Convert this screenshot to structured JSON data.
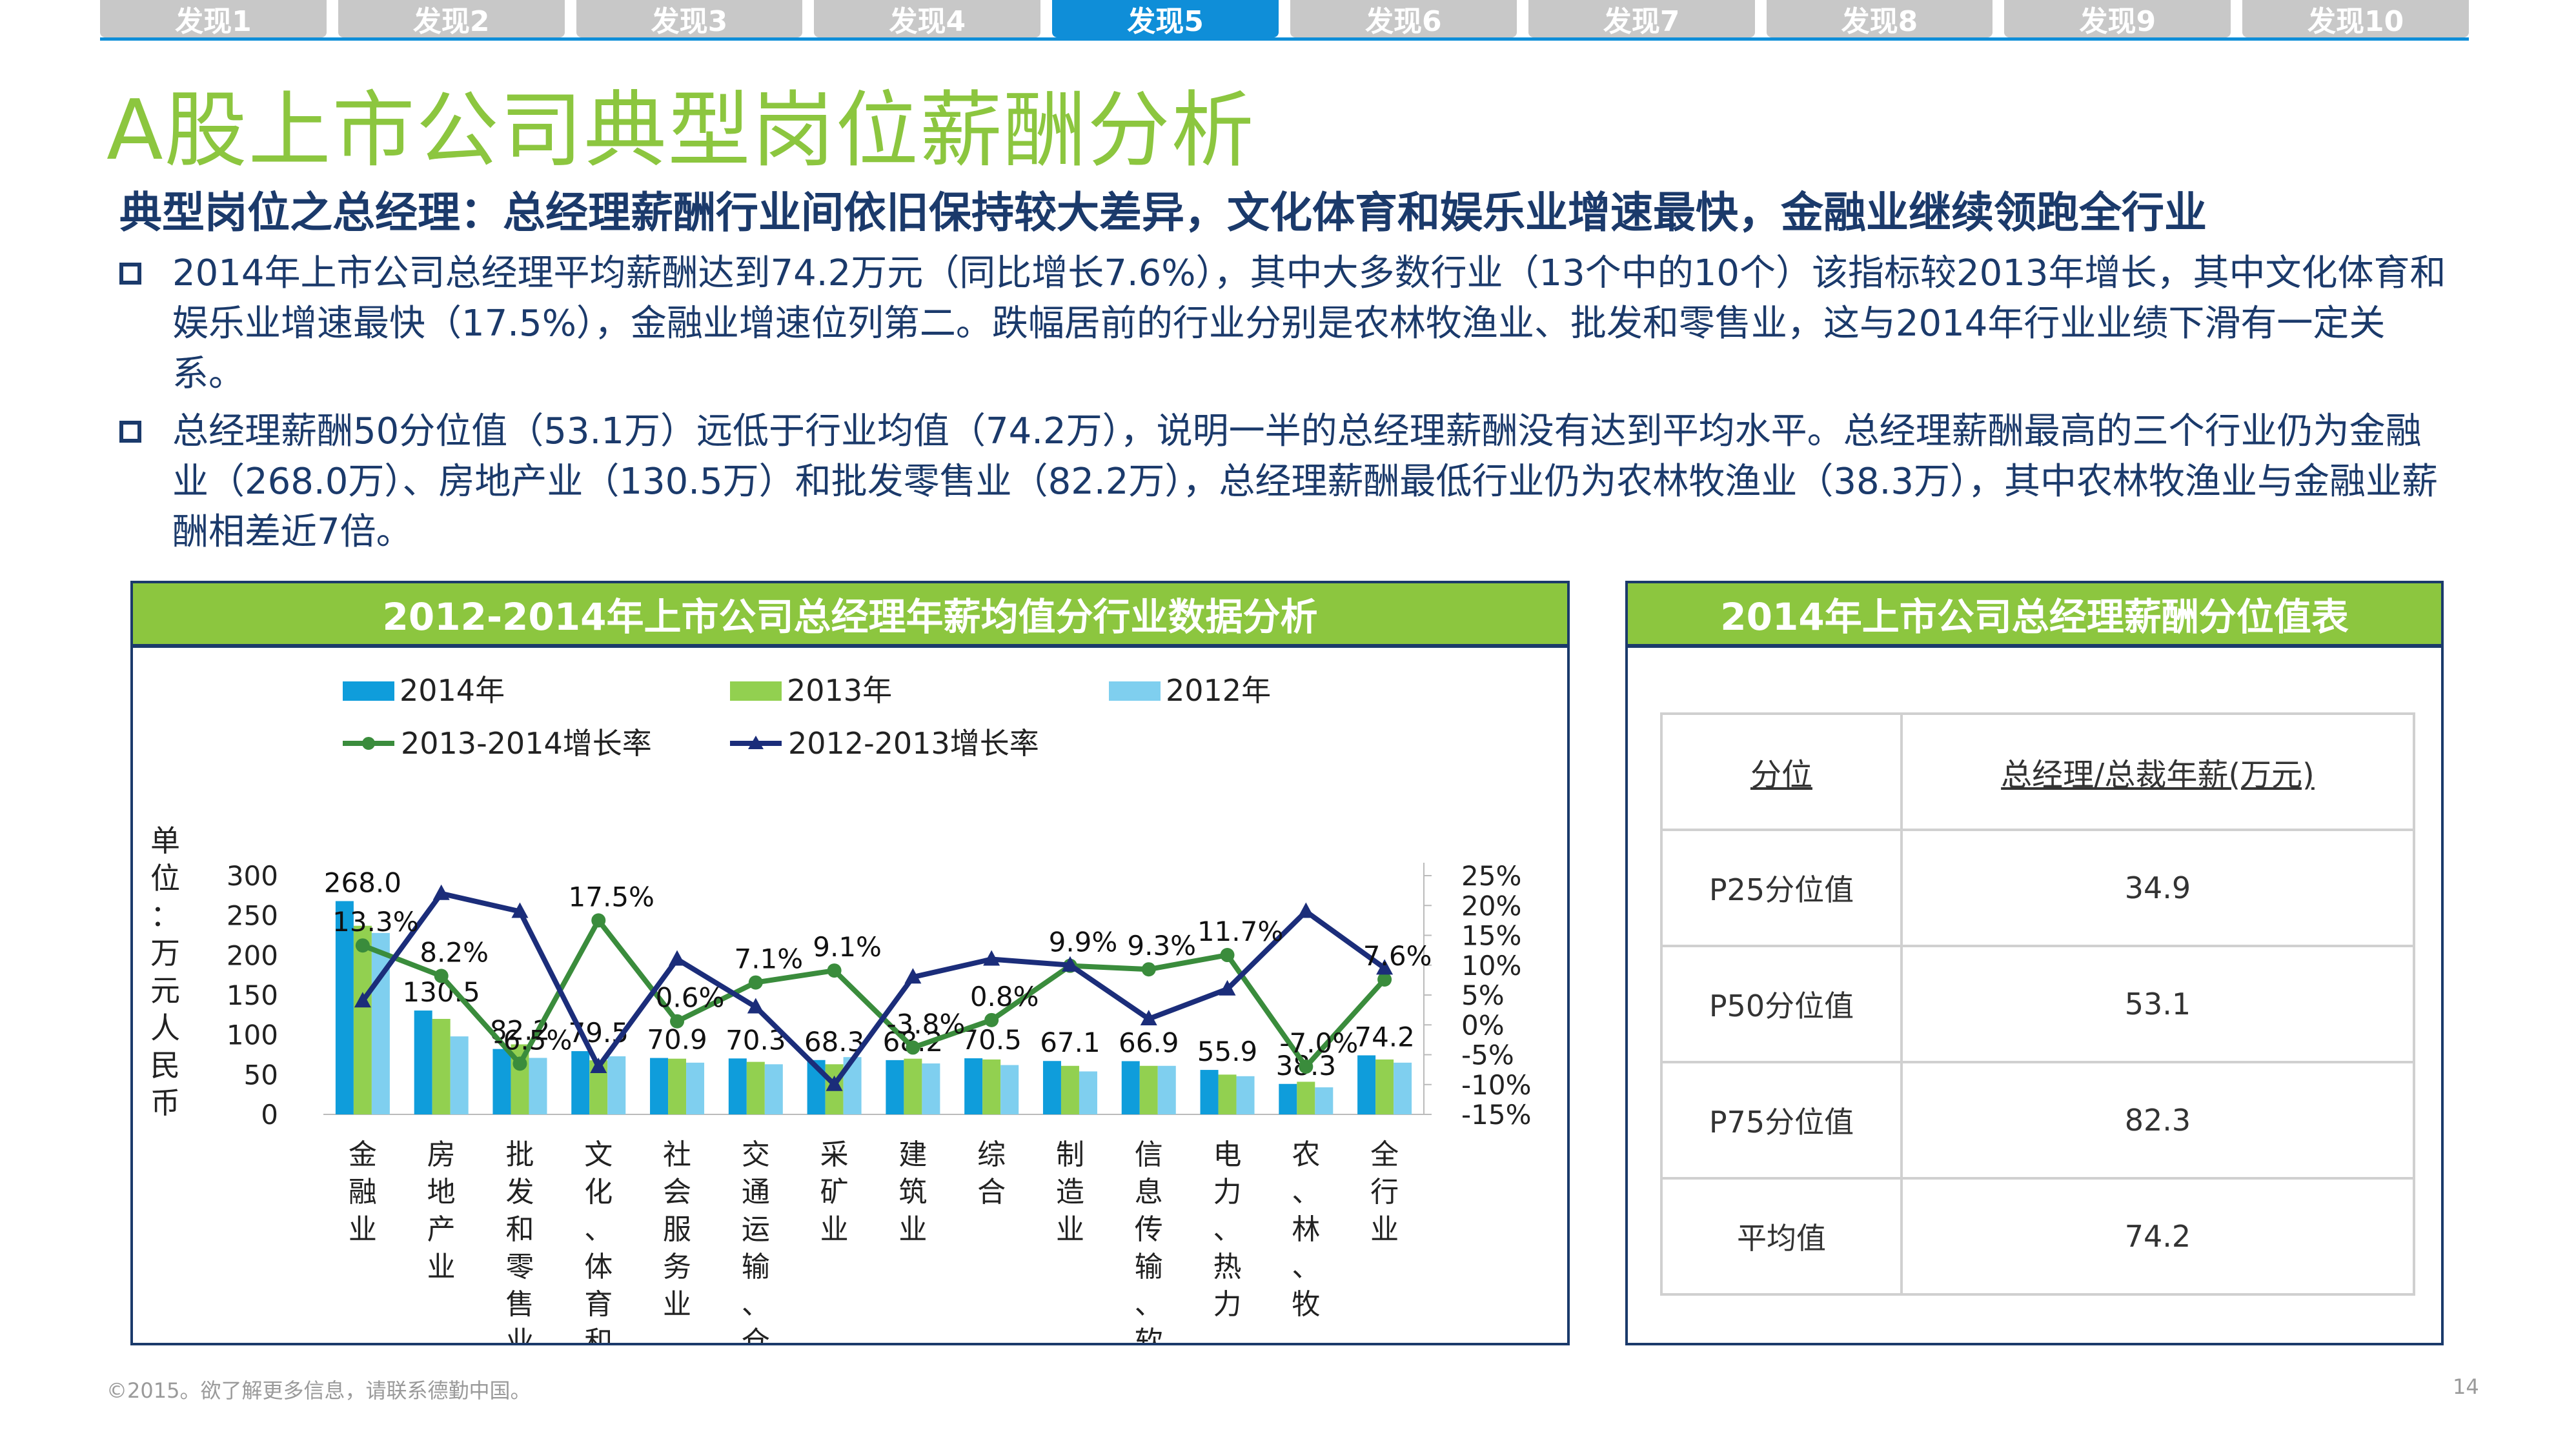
{
  "tabs": [
    "发现1",
    "发现2",
    "发现3",
    "发现4",
    "发现5",
    "发现6",
    "发现7",
    "发现8",
    "发现9",
    "发现10"
  ],
  "active_tab_index": 4,
  "title": "A股上市公司典型岗位薪酬分析",
  "subtitle": "典型岗位之总经理：总经理薪酬行业间依旧保持较大差异，文化体育和娱乐业增速最快，金融业继续领跑全行业",
  "bullets": [
    "2014年上市公司总经理平均薪酬达到74.2万元（同比增长7.6%），其中大多数行业（13个中的10个）该指标较2013年增长，其中文化体育和娱乐业增速最快（17.5%），金融业增速位列第二。跌幅居前的行业分别是农林牧渔业、批发和零售业，这与2014年行业业绩下滑有一定关系。",
    "总经理薪酬50分位值（53.1万）远低于行业均值（74.2万），说明一半的总经理薪酬没有达到平均水平。总经理薪酬最高的三个行业仍为金融业（268.0万）、房地产业（130.5万）和批发零售业（82.2万），总经理薪酬最低行业仍为农林牧渔业（38.3万），其中农林牧渔业与金融业薪酬相差近7倍。"
  ],
  "chart_panel_title": "2012-2014年上市公司总经理年薪均值分行业数据分析",
  "table_panel_title": "2014年上市公司总经理薪酬分位值表",
  "chart_data": {
    "type": "bar",
    "categories": [
      "金融业",
      "房地产业",
      "批发和零售业",
      "文化、体育和…",
      "社会服务业",
      "交通运输、仓…",
      "采矿业",
      "建筑业",
      "综合",
      "制造业",
      "信息传输、软…",
      "电力、热力、…",
      "农、林、牧、…",
      "全行业"
    ],
    "series": [
      {
        "name": "2014年",
        "type": "bar",
        "color": "#0f9ddb",
        "values": [
          268.0,
          130.5,
          82.2,
          79.5,
          70.9,
          70.3,
          68.3,
          68.2,
          70.5,
          67.1,
          66.9,
          55.9,
          38.3,
          74.2
        ]
      },
      {
        "name": "2013年",
        "type": "bar",
        "color": "#92d050",
        "values": [
          237,
          120,
          88,
          68,
          70,
          66,
          63,
          70,
          69,
          61,
          61,
          50,
          41,
          69
        ]
      },
      {
        "name": "2012年",
        "type": "bar",
        "color": "#7fcfef",
        "values": [
          228,
          98,
          71,
          73,
          65,
          63,
          72,
          64,
          62,
          54,
          61,
          48,
          34,
          65
        ]
      },
      {
        "name": "2013-2014增长率",
        "type": "line",
        "axis": "right",
        "color": "#3a8c3c",
        "values": [
          13.3,
          8.2,
          -6.5,
          17.5,
          0.6,
          7.1,
          9.1,
          -3.8,
          0.8,
          9.9,
          9.3,
          11.7,
          -7.0,
          7.6
        ]
      },
      {
        "name": "2012-2013增长率",
        "type": "line",
        "axis": "right",
        "color": "#1b2d7a",
        "values": [
          4.0,
          22.0,
          19.0,
          -7.0,
          11.0,
          3.0,
          -10.0,
          8.0,
          11.0,
          10.0,
          1.0,
          6.0,
          19.0,
          9.5
        ]
      }
    ],
    "bar_labels": [
      "268.0",
      "130.5",
      "82.2",
      "79.5",
      "70.9",
      "70.3",
      "68.3",
      "68.2",
      "70.5",
      "67.1",
      "66.9",
      "55.9",
      "38.3",
      "74.2"
    ],
    "line_labels": [
      "13.3%",
      "8.2%",
      "-6.5%",
      "17.5%",
      "0.6%",
      "7.1%",
      "9.1%",
      "-3.8%",
      "0.8%",
      "9.9%",
      "9.3%",
      "11.7%",
      "-7.0%",
      "7.6%"
    ],
    "ylabel": "单位：万元人民币",
    "ylim": [
      0,
      300
    ],
    "yticks": [
      "0",
      "50",
      "100",
      "150",
      "200",
      "250",
      "300"
    ],
    "y2lim": [
      -15,
      25
    ],
    "y2ticks": [
      "-15%",
      "-10%",
      "-5%",
      "0%",
      "5%",
      "10%",
      "15%",
      "20%",
      "25%"
    ],
    "legend": "top"
  },
  "table": {
    "headers": [
      "分位",
      "总经理/总裁年薪(万元)"
    ],
    "rows": [
      [
        "P25分位值",
        "34.9"
      ],
      [
        "P50分位值",
        "53.1"
      ],
      [
        "P75分位值",
        "82.3"
      ],
      [
        "平均值",
        "74.2"
      ]
    ]
  },
  "footer": "©2015。欲了解更多信息，请联系德勤中国。",
  "page_number": "14"
}
